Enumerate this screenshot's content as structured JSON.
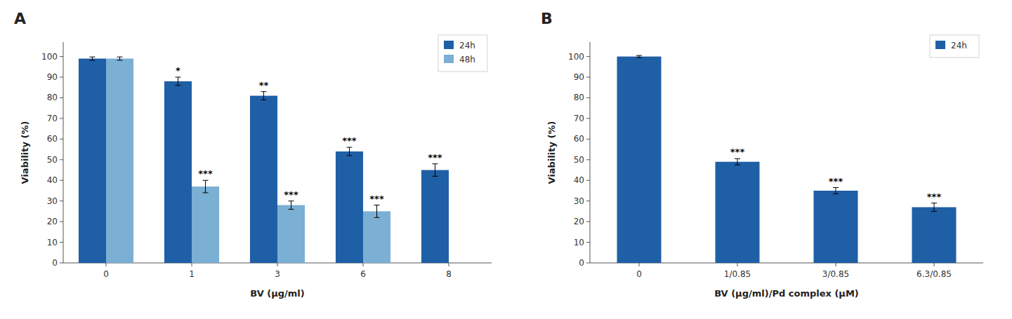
{
  "chart_data": [
    {
      "type": "bar",
      "title": "A",
      "categories": [
        "0",
        "1",
        "3",
        "6",
        "8"
      ],
      "series": [
        {
          "name": "24h",
          "color": "#1f5fa6",
          "values": [
            99,
            88,
            81,
            54,
            45
          ],
          "errors": [
            0.8,
            2,
            2,
            2,
            3
          ],
          "annotations": [
            null,
            "*",
            "**",
            "***",
            "***"
          ]
        },
        {
          "name": "48h",
          "color": "#7bafd4",
          "values": [
            99,
            37,
            28,
            25,
            null
          ],
          "errors": [
            0.8,
            3,
            2,
            3,
            null
          ],
          "annotations": [
            null,
            "***",
            "***",
            "***",
            null
          ]
        }
      ],
      "xlabel": "BV (μg/ml)",
      "ylabel": "Viability (%)",
      "ylim": [
        0,
        107
      ],
      "yticks": [
        0,
        10,
        20,
        30,
        40,
        50,
        60,
        70,
        80,
        90,
        100
      ],
      "legend": "upper right"
    },
    {
      "type": "bar",
      "title": "B",
      "categories": [
        "0",
        "1/0.85",
        "3/0.85",
        "6.3/0.85"
      ],
      "series": [
        {
          "name": "24h",
          "color": "#1f5fa6",
          "values": [
            100,
            49,
            35,
            27
          ],
          "errors": [
            0.5,
            1.5,
            1.5,
            2
          ],
          "annotations": [
            null,
            "***",
            "***",
            "***"
          ]
        }
      ],
      "xlabel": "BV (μg/ml)/Pd complex (μM)",
      "ylabel": "Viability (%)",
      "ylim": [
        0,
        107
      ],
      "yticks": [
        0,
        10,
        20,
        30,
        40,
        50,
        60,
        70,
        80,
        90,
        100
      ],
      "legend": "upper right"
    }
  ]
}
